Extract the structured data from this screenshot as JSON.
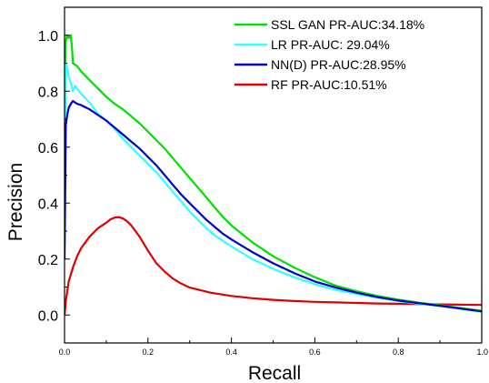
{
  "chart_data": {
    "type": "line",
    "xlabel": "Recall",
    "ylabel": "Precision",
    "xlim": [
      0,
      1
    ],
    "ylim": [
      -0.1,
      1.1
    ],
    "x_ticks": [
      "0.0",
      "0.2",
      "0.4",
      "0.6",
      "0.8",
      "1.0"
    ],
    "y_ticks": [
      "0.0",
      "0.2",
      "0.4",
      "0.6",
      "0.8",
      "1.0"
    ],
    "grid": false,
    "legend_position": "top-right",
    "series": [
      {
        "name": "SSL GAN PR-AUC:34.18%",
        "color": "#00e000",
        "x": [
          0.0,
          0.002,
          0.006,
          0.01,
          0.015,
          0.018,
          0.02,
          0.03,
          0.04,
          0.06,
          0.08,
          0.1,
          0.12,
          0.14,
          0.16,
          0.18,
          0.2,
          0.22,
          0.24,
          0.26,
          0.28,
          0.3,
          0.32,
          0.34,
          0.36,
          0.38,
          0.4,
          0.45,
          0.5,
          0.55,
          0.6,
          0.65,
          0.7,
          0.75,
          0.8,
          0.85,
          0.9,
          0.95,
          1.0
        ],
        "y": [
          0.3,
          0.97,
          1.0,
          0.99,
          1.0,
          0.95,
          0.9,
          0.89,
          0.87,
          0.84,
          0.81,
          0.78,
          0.755,
          0.735,
          0.71,
          0.685,
          0.655,
          0.625,
          0.595,
          0.56,
          0.525,
          0.49,
          0.455,
          0.42,
          0.385,
          0.35,
          0.32,
          0.26,
          0.21,
          0.17,
          0.135,
          0.105,
          0.085,
          0.068,
          0.055,
          0.044,
          0.035,
          0.025,
          0.015
        ]
      },
      {
        "name": "LR PR-AUC: 29.04%",
        "color": "#33ffff",
        "x": [
          0.0,
          0.003,
          0.007,
          0.01,
          0.015,
          0.02,
          0.025,
          0.03,
          0.04,
          0.06,
          0.08,
          0.1,
          0.12,
          0.14,
          0.16,
          0.18,
          0.2,
          0.22,
          0.24,
          0.26,
          0.28,
          0.3,
          0.32,
          0.34,
          0.36,
          0.38,
          0.4,
          0.45,
          0.5,
          0.55,
          0.6,
          0.65,
          0.7,
          0.75,
          0.8,
          0.85,
          0.9,
          0.95,
          1.0
        ],
        "y": [
          0.25,
          0.9,
          0.88,
          0.85,
          0.83,
          0.8,
          0.82,
          0.81,
          0.79,
          0.76,
          0.72,
          0.695,
          0.665,
          0.63,
          0.6,
          0.57,
          0.54,
          0.51,
          0.475,
          0.44,
          0.405,
          0.37,
          0.34,
          0.31,
          0.285,
          0.265,
          0.245,
          0.2,
          0.165,
          0.135,
          0.11,
          0.09,
          0.075,
          0.062,
          0.05,
          0.04,
          0.032,
          0.022,
          0.012
        ]
      },
      {
        "name": "NN(D) PR-AUC:28.95%",
        "color": "#0000c8",
        "x": [
          0.0,
          0.003,
          0.007,
          0.01,
          0.015,
          0.02,
          0.025,
          0.03,
          0.04,
          0.06,
          0.08,
          0.1,
          0.12,
          0.14,
          0.16,
          0.18,
          0.2,
          0.22,
          0.24,
          0.26,
          0.28,
          0.3,
          0.32,
          0.34,
          0.36,
          0.38,
          0.4,
          0.45,
          0.5,
          0.55,
          0.6,
          0.65,
          0.7,
          0.75,
          0.8,
          0.85,
          0.9,
          0.95,
          1.0
        ],
        "y": [
          0.2,
          0.68,
          0.72,
          0.74,
          0.755,
          0.765,
          0.76,
          0.755,
          0.75,
          0.735,
          0.715,
          0.695,
          0.67,
          0.645,
          0.62,
          0.595,
          0.565,
          0.535,
          0.5,
          0.465,
          0.43,
          0.4,
          0.37,
          0.34,
          0.315,
          0.29,
          0.27,
          0.225,
          0.185,
          0.15,
          0.12,
          0.098,
          0.08,
          0.064,
          0.052,
          0.042,
          0.033,
          0.023,
          0.013
        ]
      },
      {
        "name": "RF PR-AUC:10.51%",
        "color": "#e00000",
        "x": [
          0.0,
          0.003,
          0.01,
          0.02,
          0.03,
          0.04,
          0.05,
          0.06,
          0.08,
          0.1,
          0.11,
          0.12,
          0.13,
          0.14,
          0.15,
          0.16,
          0.17,
          0.18,
          0.2,
          0.22,
          0.24,
          0.26,
          0.28,
          0.3,
          0.35,
          0.4,
          0.45,
          0.5,
          0.55,
          0.6,
          0.65,
          0.7,
          0.75,
          0.8,
          0.85,
          0.9,
          0.95,
          1.0
        ],
        "y": [
          0.0,
          0.05,
          0.12,
          0.17,
          0.21,
          0.24,
          0.26,
          0.28,
          0.31,
          0.33,
          0.342,
          0.348,
          0.35,
          0.345,
          0.335,
          0.32,
          0.3,
          0.28,
          0.23,
          0.185,
          0.155,
          0.13,
          0.112,
          0.098,
          0.08,
          0.068,
          0.06,
          0.054,
          0.05,
          0.047,
          0.045,
          0.043,
          0.041,
          0.04,
          0.039,
          0.038,
          0.037,
          0.036
        ]
      }
    ]
  }
}
